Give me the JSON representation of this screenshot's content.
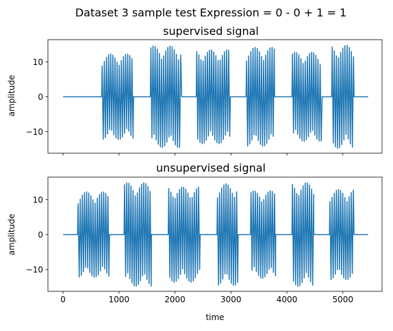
{
  "figure": {
    "suptitle": "Dataset 3 sample test Expression = 0 - 0 + 1 = 1"
  },
  "chart_data": [
    {
      "type": "line",
      "title": "supervised signal",
      "xlabel": "",
      "ylabel": "amplitude",
      "xlim": [
        -270,
        5700
      ],
      "ylim": [
        -16.2,
        16.4
      ],
      "xticks": [
        0,
        1000,
        2000,
        3000,
        4000,
        5000
      ],
      "xtick_labels_visible": false,
      "yticks": [
        -10,
        0,
        10
      ],
      "ytick_labels": [
        "−10",
        "0",
        "10"
      ],
      "baseline_range": [
        0,
        5450
      ],
      "bursts": [
        {
          "start": 690,
          "end": 1260,
          "amp": 12.3
        },
        {
          "start": 1560,
          "end": 2120,
          "amp": 14.6
        },
        {
          "start": 2380,
          "end": 2990,
          "amp": 13.5
        },
        {
          "start": 3270,
          "end": 3780,
          "amp": 14.2
        },
        {
          "start": 4090,
          "end": 4630,
          "amp": 12.8
        },
        {
          "start": 4800,
          "end": 5200,
          "amp": 14.8
        }
      ]
    },
    {
      "type": "line",
      "title": "unsupervised signal",
      "xlabel": "time",
      "ylabel": "amplitude",
      "xlim": [
        -270,
        5700
      ],
      "ylim": [
        -16.2,
        16.4
      ],
      "xticks": [
        0,
        1000,
        2000,
        3000,
        4000,
        5000
      ],
      "xtick_labels": [
        "0",
        "1000",
        "2000",
        "3000",
        "4000",
        "5000"
      ],
      "yticks": [
        -10,
        0,
        10
      ],
      "ytick_labels": [
        "−10",
        "0",
        "10"
      ],
      "baseline_range": [
        0,
        5450
      ],
      "bursts": [
        {
          "start": 260,
          "end": 830,
          "amp": 12.2
        },
        {
          "start": 1090,
          "end": 1580,
          "amp": 14.8
        },
        {
          "start": 1880,
          "end": 2450,
          "amp": 13.6
        },
        {
          "start": 2750,
          "end": 3130,
          "amp": 14.5
        },
        {
          "start": 3350,
          "end": 3800,
          "amp": 12.5
        },
        {
          "start": 4090,
          "end": 4480,
          "amp": 14.8
        },
        {
          "start": 4760,
          "end": 5200,
          "amp": 12.9
        }
      ]
    }
  ]
}
